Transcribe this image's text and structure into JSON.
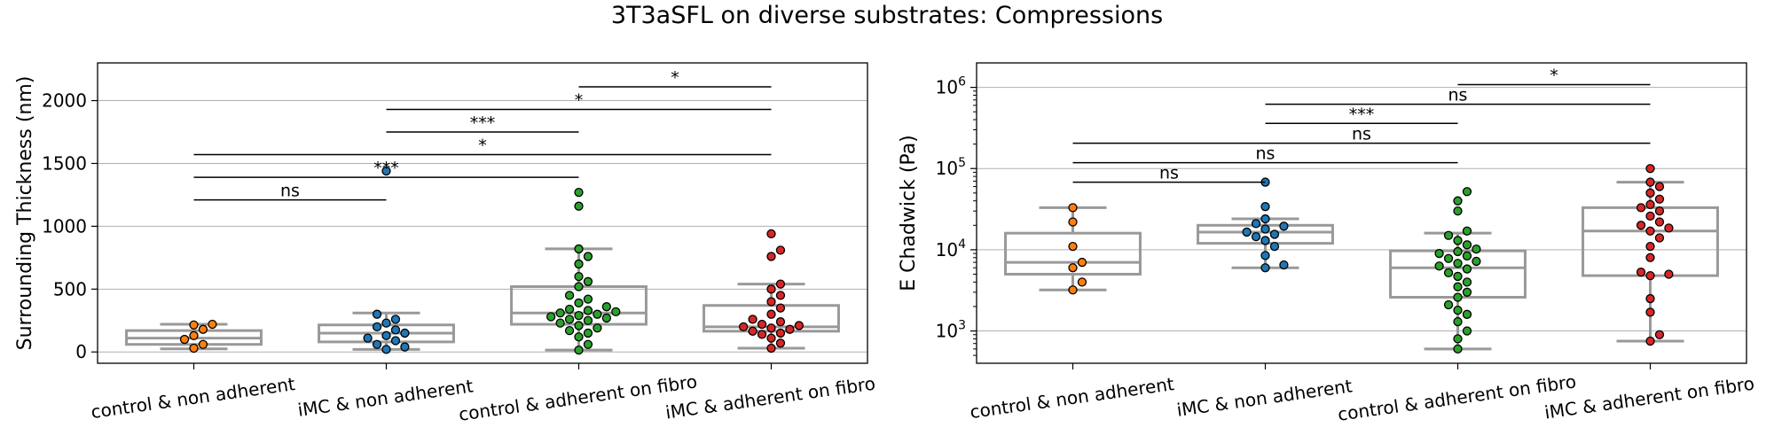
{
  "figure": {
    "title": "3T3aSFL on diverse substrates: Compressions"
  },
  "chart_data": [
    {
      "type": "box",
      "ylabel": "Surrounding Thickness (nm)",
      "ylim": [
        -90,
        2300
      ],
      "yticks": [
        0,
        500,
        1000,
        1500,
        2000
      ],
      "ytick_labels": [
        "0",
        "500",
        "1000",
        "1500",
        "2000"
      ],
      "grid": "y",
      "categories": [
        "control & non adherent",
        "iMC & non adherent",
        "control & adherent on fibro",
        "iMC & adherent on fibro"
      ],
      "colors": [
        "#ff7f0e",
        "#1f77b4",
        "#2ca02c",
        "#d62728"
      ],
      "boxes": [
        {
          "whislo": 25,
          "q1": 60,
          "med": 110,
          "q3": 170,
          "whishi": 220
        },
        {
          "whislo": 20,
          "q1": 80,
          "med": 150,
          "q3": 215,
          "whishi": 310
        },
        {
          "whislo": 15,
          "q1": 220,
          "med": 310,
          "q3": 520,
          "whishi": 820
        },
        {
          "whislo": 30,
          "q1": 165,
          "med": 200,
          "q3": 370,
          "whishi": 540
        }
      ],
      "points": [
        [
          30,
          60,
          100,
          130,
          180,
          215,
          220
        ],
        [
          20,
          40,
          60,
          90,
          110,
          130,
          150,
          175,
          200,
          230,
          260,
          300,
          1440
        ],
        [
          15,
          60,
          120,
          150,
          170,
          190,
          210,
          230,
          250,
          260,
          270,
          280,
          290,
          300,
          310,
          320,
          330,
          340,
          360,
          390,
          420,
          450,
          520,
          560,
          600,
          700,
          760,
          820,
          1160,
          1270
        ],
        [
          30,
          70,
          110,
          140,
          150,
          165,
          180,
          190,
          200,
          210,
          220,
          240,
          260,
          300,
          350,
          400,
          450,
          500,
          540,
          760,
          810,
          940
        ]
      ],
      "annotations": [
        {
          "from": 0,
          "to": 1,
          "y": 1210,
          "label": "ns"
        },
        {
          "from": 0,
          "to": 2,
          "y": 1390,
          "label": "***"
        },
        {
          "from": 0,
          "to": 3,
          "y": 1570,
          "label": "*"
        },
        {
          "from": 1,
          "to": 2,
          "y": 1750,
          "label": "***"
        },
        {
          "from": 1,
          "to": 3,
          "y": 1930,
          "label": "*"
        },
        {
          "from": 2,
          "to": 3,
          "y": 2110,
          "label": "*"
        }
      ]
    },
    {
      "type": "box",
      "ylabel": "E Chadwick (Pa)",
      "yscale": "log",
      "ylim": [
        400,
        2000000
      ],
      "yticks": [
        1000,
        10000,
        100000,
        1000000
      ],
      "ytick_labels": [
        [
          "10",
          "3"
        ],
        [
          "10",
          "4"
        ],
        [
          "10",
          "5"
        ],
        [
          "10",
          "6"
        ]
      ],
      "grid": "y",
      "categories": [
        "control & non adherent",
        "iMC & non adherent",
        "control & adherent on fibro",
        "iMC & adherent on fibro"
      ],
      "colors": [
        "#ff7f0e",
        "#1f77b4",
        "#2ca02c",
        "#d62728"
      ],
      "boxes": [
        {
          "whislo": 3200,
          "q1": 5000,
          "med": 7000,
          "q3": 16000,
          "whishi": 33000
        },
        {
          "whislo": 6000,
          "q1": 12000,
          "med": 16500,
          "q3": 20000,
          "whishi": 24000
        },
        {
          "whislo": 600,
          "q1": 2600,
          "med": 6000,
          "q3": 9700,
          "whishi": 16000
        },
        {
          "whislo": 750,
          "q1": 4800,
          "med": 17000,
          "q3": 33000,
          "whishi": 68000
        }
      ],
      "points": [
        [
          3200,
          4000,
          6000,
          7000,
          11000,
          22000,
          33000
        ],
        [
          6000,
          6500,
          8500,
          11000,
          13000,
          14500,
          15500,
          16500,
          18000,
          19500,
          21000,
          24000,
          34000,
          68000
        ],
        [
          600,
          800,
          1000,
          1300,
          1600,
          1800,
          2100,
          2600,
          3000,
          3500,
          4000,
          4700,
          5200,
          5800,
          6300,
          6800,
          7200,
          7800,
          8400,
          9000,
          9500,
          10200,
          11500,
          13000,
          15000,
          17000,
          30000,
          40000,
          52000
        ],
        [
          750,
          900,
          1700,
          2500,
          4800,
          5000,
          5300,
          8000,
          11000,
          14000,
          17000,
          18500,
          20000,
          22000,
          26000,
          30000,
          33000,
          36000,
          42000,
          50000,
          60000,
          68000,
          100000
        ]
      ],
      "annotations": [
        {
          "from": 0,
          "to": 1,
          "y": 68000,
          "label": "ns"
        },
        {
          "from": 0,
          "to": 2,
          "y": 118000,
          "label": "ns"
        },
        {
          "from": 0,
          "to": 3,
          "y": 205000,
          "label": "ns"
        },
        {
          "from": 1,
          "to": 2,
          "y": 360000,
          "label": "***"
        },
        {
          "from": 1,
          "to": 3,
          "y": 620000,
          "label": "ns"
        },
        {
          "from": 2,
          "to": 3,
          "y": 1080000,
          "label": "*"
        }
      ]
    }
  ]
}
